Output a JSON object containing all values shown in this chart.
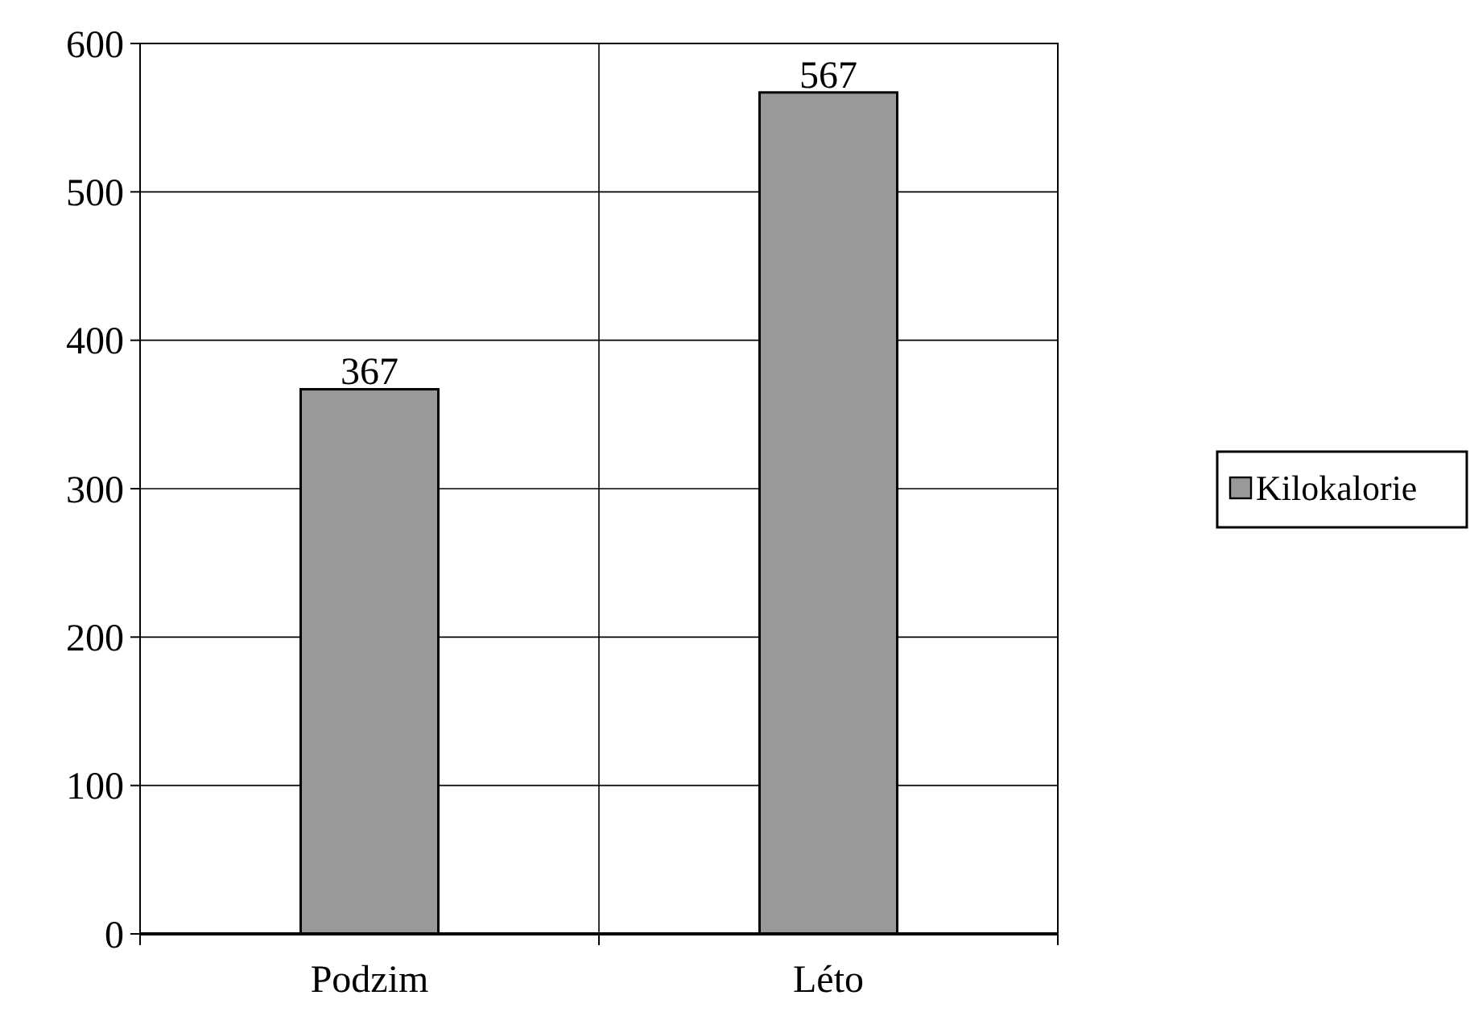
{
  "chart_data": {
    "type": "bar",
    "categories": [
      "Podzim",
      "Léto"
    ],
    "series": [
      {
        "name": "Kilokalorie",
        "color": "#999999",
        "values": [
          367,
          567
        ]
      }
    ],
    "ylim": [
      0,
      600
    ],
    "yticks": [
      0,
      100,
      200,
      300,
      400,
      500,
      600
    ],
    "grid": true,
    "data_labels": true,
    "legend": "right"
  }
}
